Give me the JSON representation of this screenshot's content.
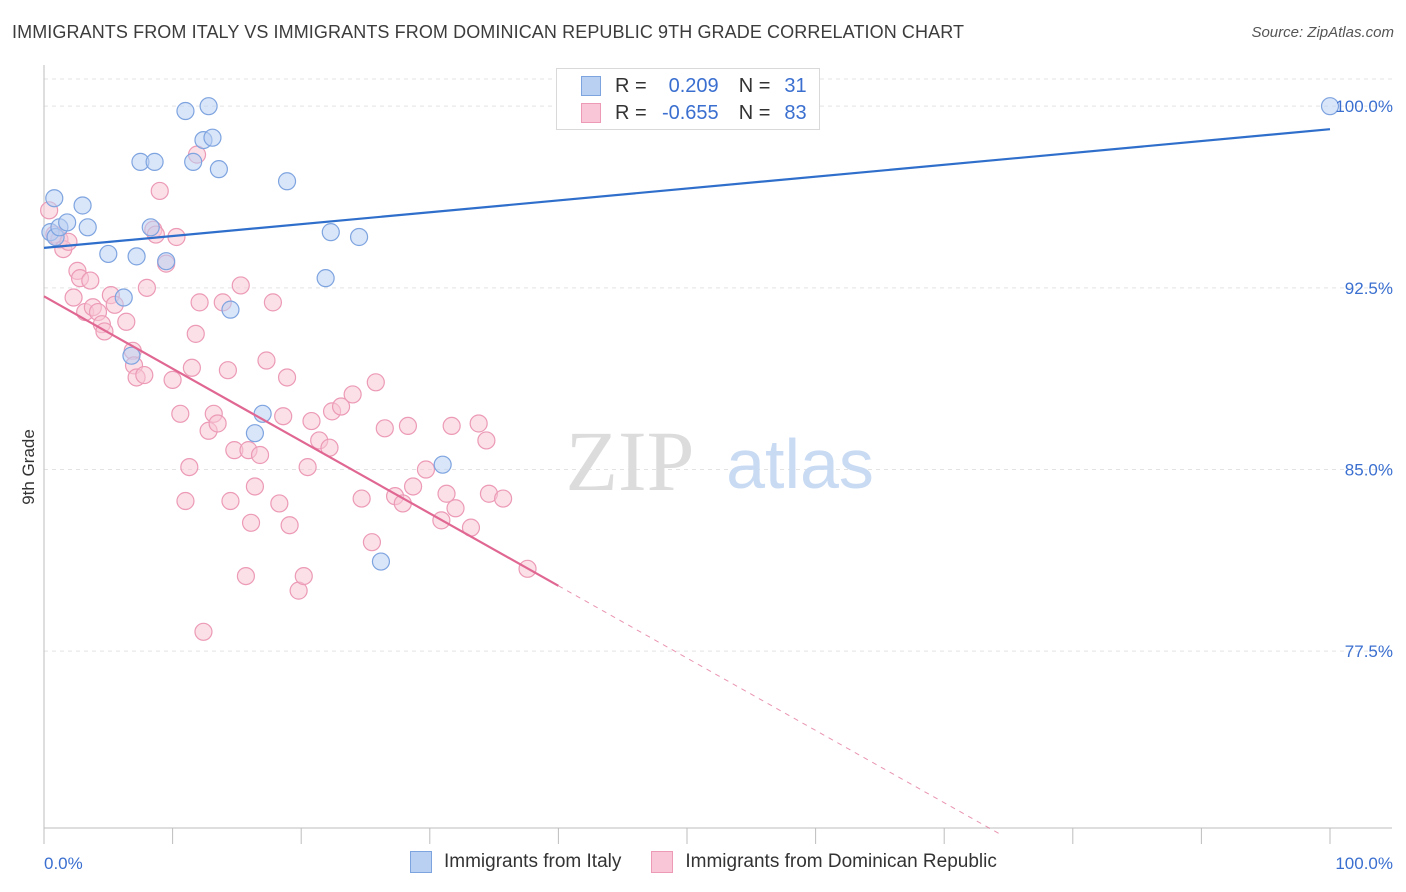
{
  "title": "IMMIGRANTS FROM ITALY VS IMMIGRANTS FROM DOMINICAN REPUBLIC 9TH GRADE CORRELATION CHART",
  "source": "Source: ZipAtlas.com",
  "watermark": {
    "zip": "ZIP",
    "atlas": "atlas"
  },
  "colors": {
    "italy_fill": "#b9d0f3",
    "italy_stroke": "#7ea4e0",
    "italy_line": "#2f6fcb",
    "dr_fill": "#f8c6d6",
    "dr_stroke": "#ec9ab5",
    "dr_line": "#e06792",
    "axis_text": "#3a6fd0",
    "grid": "#e3e3e3"
  },
  "legend": {
    "r_label": "R =",
    "n_label": "N =",
    "italy": {
      "r": "0.209",
      "n": "31"
    },
    "dr": {
      "r": "-0.655",
      "n": "83"
    }
  },
  "series_labels": {
    "italy": "Immigrants from Italy",
    "dr": "Immigrants from Dominican Republic"
  },
  "chart_data": {
    "type": "scatter",
    "xlabel": "",
    "ylabel": "9th Grade",
    "xlim": [
      0,
      100
    ],
    "ylim": [
      70.2,
      101.7
    ],
    "x_tick_labels": [
      {
        "value": 0,
        "label": "0.0%"
      },
      {
        "value": 100,
        "label": "100.0%"
      }
    ],
    "y_ticks": [
      {
        "value": 100,
        "label": "100.0%"
      },
      {
        "value": 92.5,
        "label": "92.5%"
      },
      {
        "value": 85,
        "label": "85.0%"
      },
      {
        "value": 77.5,
        "label": "77.5%"
      }
    ],
    "x_minor_ticks": [
      0,
      10,
      20,
      30,
      40,
      50,
      60,
      70,
      80,
      90,
      100
    ],
    "series": [
      {
        "name": "Immigrants from Italy",
        "key": "italy",
        "R": 0.209,
        "N": 31,
        "trend": {
          "x0": 0,
          "y0": 94.15,
          "x1": 100,
          "y1": 99.05
        },
        "points": [
          [
            0.5,
            94.8
          ],
          [
            0.8,
            96.2
          ],
          [
            0.9,
            94.6
          ],
          [
            1.2,
            95.0
          ],
          [
            1.8,
            95.2
          ],
          [
            3.0,
            95.9
          ],
          [
            3.4,
            95.0
          ],
          [
            5.0,
            93.9
          ],
          [
            6.2,
            92.1
          ],
          [
            6.8,
            89.7
          ],
          [
            7.2,
            93.8
          ],
          [
            7.5,
            97.7
          ],
          [
            8.3,
            95.0
          ],
          [
            8.6,
            97.7
          ],
          [
            9.5,
            93.6
          ],
          [
            11.6,
            97.7
          ],
          [
            11.0,
            99.8
          ],
          [
            12.4,
            98.6
          ],
          [
            12.8,
            100.0
          ],
          [
            13.1,
            98.7
          ],
          [
            13.6,
            97.4
          ],
          [
            14.5,
            91.6
          ],
          [
            16.4,
            86.5
          ],
          [
            17.0,
            87.3
          ],
          [
            18.9,
            96.9
          ],
          [
            21.9,
            92.9
          ],
          [
            22.3,
            94.8
          ],
          [
            24.5,
            94.6
          ],
          [
            26.2,
            81.2
          ],
          [
            31.0,
            85.2
          ],
          [
            100,
            100.0
          ]
        ]
      },
      {
        "name": "Immigrants from Dominican Republic",
        "key": "dr",
        "R": -0.655,
        "N": 83,
        "trend": {
          "x0": 0,
          "y0": 92.15,
          "x1": 40.0,
          "y1": 80.2,
          "dash_x1": 74.5,
          "dash_y1": 69.9
        },
        "points": [
          [
            0.4,
            95.7
          ],
          [
            0.8,
            94.7
          ],
          [
            1.2,
            94.5
          ],
          [
            1.5,
            94.1
          ],
          [
            1.9,
            94.4
          ],
          [
            2.6,
            93.2
          ],
          [
            2.8,
            92.9
          ],
          [
            2.3,
            92.1
          ],
          [
            3.2,
            91.5
          ],
          [
            3.6,
            92.8
          ],
          [
            3.8,
            91.7
          ],
          [
            4.2,
            91.5
          ],
          [
            4.5,
            91.0
          ],
          [
            4.7,
            90.7
          ],
          [
            5.2,
            92.2
          ],
          [
            5.5,
            91.8
          ],
          [
            6.4,
            91.1
          ],
          [
            6.9,
            89.9
          ],
          [
            7.0,
            89.3
          ],
          [
            7.2,
            88.8
          ],
          [
            7.8,
            88.9
          ],
          [
            8.0,
            92.5
          ],
          [
            8.5,
            94.9
          ],
          [
            8.7,
            94.7
          ],
          [
            9.5,
            93.5
          ],
          [
            10.0,
            88.7
          ],
          [
            10.6,
            87.3
          ],
          [
            11.0,
            83.7
          ],
          [
            11.3,
            85.1
          ],
          [
            11.5,
            89.2
          ],
          [
            11.8,
            90.6
          ],
          [
            12.1,
            91.9
          ],
          [
            12.8,
            86.6
          ],
          [
            13.2,
            87.3
          ],
          [
            13.5,
            86.9
          ],
          [
            13.9,
            91.9
          ],
          [
            14.3,
            89.1
          ],
          [
            14.5,
            83.7
          ],
          [
            14.8,
            85.8
          ],
          [
            15.3,
            92.6
          ],
          [
            15.7,
            80.6
          ],
          [
            15.9,
            85.8
          ],
          [
            16.1,
            82.8
          ],
          [
            16.4,
            84.3
          ],
          [
            16.8,
            85.6
          ],
          [
            17.3,
            89.5
          ],
          [
            17.8,
            91.9
          ],
          [
            18.3,
            83.6
          ],
          [
            18.6,
            87.2
          ],
          [
            18.9,
            88.8
          ],
          [
            19.1,
            82.7
          ],
          [
            19.8,
            80.0
          ],
          [
            20.2,
            80.6
          ],
          [
            20.5,
            85.1
          ],
          [
            20.8,
            87.0
          ],
          [
            21.4,
            86.2
          ],
          [
            22.2,
            85.9
          ],
          [
            22.4,
            87.4
          ],
          [
            23.1,
            87.6
          ],
          [
            24.0,
            88.1
          ],
          [
            24.7,
            83.8
          ],
          [
            25.5,
            82.0
          ],
          [
            25.8,
            88.6
          ],
          [
            26.5,
            86.7
          ],
          [
            27.3,
            83.9
          ],
          [
            27.9,
            83.6
          ],
          [
            28.3,
            86.8
          ],
          [
            28.7,
            84.3
          ],
          [
            29.7,
            85.0
          ],
          [
            30.9,
            82.9
          ],
          [
            31.3,
            84.0
          ],
          [
            31.7,
            86.8
          ],
          [
            32.0,
            83.4
          ],
          [
            33.2,
            82.6
          ],
          [
            33.8,
            86.9
          ],
          [
            34.4,
            86.2
          ],
          [
            34.6,
            84.0
          ],
          [
            35.7,
            83.8
          ],
          [
            37.6,
            80.9
          ],
          [
            9.0,
            96.5
          ],
          [
            11.9,
            98.0
          ],
          [
            12.4,
            78.3
          ],
          [
            10.3,
            94.6
          ]
        ]
      }
    ]
  }
}
